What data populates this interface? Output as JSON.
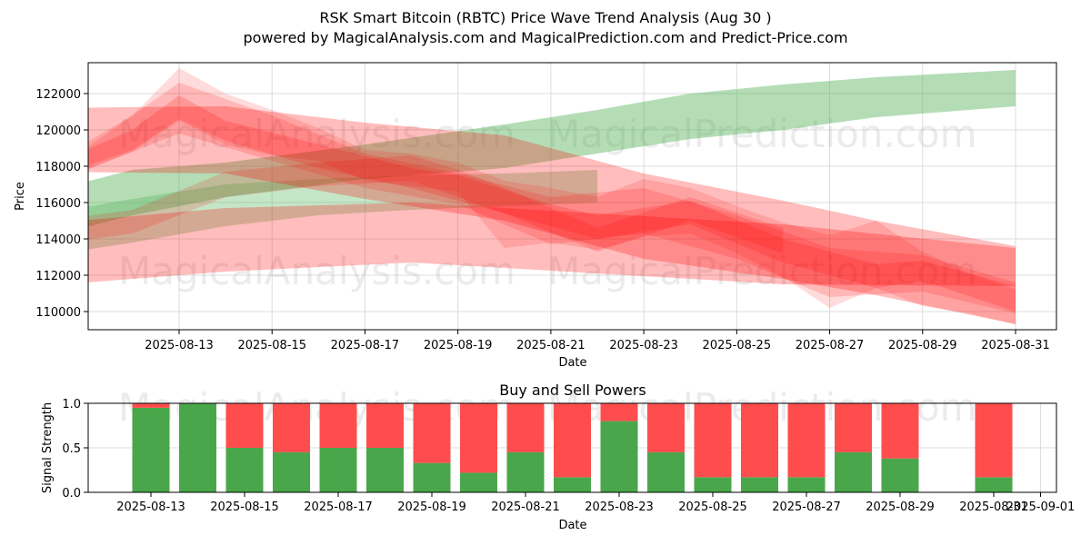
{
  "chart_data": [
    {
      "type": "area",
      "title": "RSK Smart Bitcoin (RBTC) Price Wave Trend Analysis (Aug 30 )",
      "subtitle": "powered by MagicalAnalysis.com and MagicalPrediction.com and Predict-Price.com",
      "xlabel": "Date",
      "ylabel": "Price",
      "x_ticks": [
        "2025-08-13",
        "2025-08-15",
        "2025-08-17",
        "2025-08-19",
        "2025-08-21",
        "2025-08-23",
        "2025-08-25",
        "2025-08-27",
        "2025-08-29",
        "2025-08-31"
      ],
      "y_ticks": [
        110000,
        112000,
        114000,
        116000,
        118000,
        120000,
        122000
      ],
      "xlim": [
        "2025-08-10",
        "2025-08-31"
      ],
      "ylim": [
        109000,
        123700
      ],
      "grid": true,
      "watermarks": [
        "MagicalAnalysis.com",
        "MagicalPrediction.com",
        "MagicalAnalysis.com",
        "MagicalPrediction.com"
      ],
      "colors": {
        "up": "#4caf50",
        "down": "#ff0000"
      },
      "bands": [
        {
          "color": "up",
          "opacity": 0.42,
          "points": [
            [
              "2025-08-10",
              114000,
              116500
            ],
            [
              "2025-08-12",
              115300,
              117800
            ],
            [
              "2025-08-14",
              116300,
              118200
            ],
            [
              "2025-08-17",
              117300,
              119200
            ],
            [
              "2025-08-20",
              117900,
              120300
            ],
            [
              "2025-08-22",
              118700,
              121100
            ],
            [
              "2025-08-24",
              119500,
              122000
            ],
            [
              "2025-08-26",
              120000,
              122500
            ],
            [
              "2025-08-28",
              120700,
              122900
            ],
            [
              "2025-08-31",
              121300,
              123300
            ]
          ]
        },
        {
          "color": "up",
          "opacity": 0.32,
          "points": [
            [
              "2025-08-10",
              113000,
              115300
            ],
            [
              "2025-08-12",
              113800,
              116200
            ],
            [
              "2025-08-14",
              114700,
              117000
            ],
            [
              "2025-08-16",
              115300,
              117300
            ],
            [
              "2025-08-18",
              115600,
              117500
            ],
            [
              "2025-08-20",
              115800,
              117600
            ],
            [
              "2025-08-22",
              116000,
              117800
            ]
          ]
        },
        {
          "color": "down",
          "opacity": 0.26,
          "points": [
            [
              "2025-08-10",
              117700,
              121200
            ],
            [
              "2025-08-14",
              117600,
              121300
            ],
            [
              "2025-08-17",
              116200,
              120400
            ],
            [
              "2025-08-20",
              115000,
              119700
            ],
            [
              "2025-08-23",
              112900,
              117600
            ],
            [
              "2025-08-26",
              111800,
              116100
            ],
            [
              "2025-08-28",
              110900,
              115000
            ],
            [
              "2025-08-31",
              109300,
              113600
            ]
          ]
        },
        {
          "color": "down",
          "opacity": 0.26,
          "points": [
            [
              "2025-08-10",
              111400,
              114800
            ],
            [
              "2025-08-14",
              112200,
              115700
            ],
            [
              "2025-08-18",
              112700,
              116000
            ],
            [
              "2025-08-22",
              112100,
              115400
            ],
            [
              "2025-08-26",
              111500,
              114800
            ],
            [
              "2025-08-31",
              111400,
              113500
            ]
          ]
        },
        {
          "color": "down",
          "opacity": 0.14,
          "points": [
            [
              "2025-08-11",
              117800,
              119300
            ],
            [
              "2025-08-12",
              118800,
              120800
            ],
            [
              "2025-08-13",
              120500,
              123400
            ],
            [
              "2025-08-14",
              119200,
              122000
            ],
            [
              "2025-08-15",
              118600,
              121100
            ],
            [
              "2025-08-16",
              118300,
              120100
            ],
            [
              "2025-08-17",
              117200,
              118900
            ],
            [
              "2025-08-18",
              116900,
              118700
            ],
            [
              "2025-08-19",
              116600,
              118200
            ],
            [
              "2025-08-20",
              113500,
              117200
            ],
            [
              "2025-08-21",
              113800,
              116800
            ],
            [
              "2025-08-22",
              113400,
              116300
            ],
            [
              "2025-08-23",
              114100,
              117300
            ],
            [
              "2025-08-24",
              114300,
              116800
            ],
            [
              "2025-08-25",
              113200,
              115800
            ],
            [
              "2025-08-26",
              111900,
              114900
            ],
            [
              "2025-08-27",
              110200,
              114200
            ],
            [
              "2025-08-28",
              111300,
              115000
            ],
            [
              "2025-08-29",
              110300,
              113300
            ],
            [
              "2025-08-30",
              109900,
              112100
            ],
            [
              "2025-08-31",
              109300,
              111200
            ]
          ]
        },
        {
          "color": "down",
          "opacity": 0.16,
          "points": [
            [
              "2025-08-11",
              117800,
              119000
            ],
            [
              "2025-08-13",
              119800,
              122600
            ],
            [
              "2025-08-15",
              118300,
              120800
            ],
            [
              "2025-08-17",
              116800,
              118700
            ],
            [
              "2025-08-19",
              115900,
              117600
            ],
            [
              "2025-08-21",
              113700,
              116300
            ],
            [
              "2025-08-23",
              114300,
              116800
            ],
            [
              "2025-08-25",
              112900,
              115300
            ],
            [
              "2025-08-27",
              110800,
              113500
            ],
            [
              "2025-08-29",
              111100,
              113100
            ],
            [
              "2025-08-31",
              109900,
              111600
            ]
          ]
        },
        {
          "color": "down",
          "opacity": 0.18,
          "points": [
            [
              "2025-08-11",
              118000,
              118900
            ],
            [
              "2025-08-12",
              118900,
              120000
            ],
            [
              "2025-08-13",
              120600,
              121900
            ],
            [
              "2025-08-14",
              119400,
              120500
            ],
            [
              "2025-08-16",
              117900,
              119200
            ],
            [
              "2025-08-18",
              116800,
              117900
            ],
            [
              "2025-08-19",
              116100,
              117500
            ],
            [
              "2025-08-21",
              114700,
              115900
            ],
            [
              "2025-08-22",
              114000,
              115300
            ],
            [
              "2025-08-24",
              114800,
              116100
            ],
            [
              "2025-08-26",
              112700,
              114000
            ],
            [
              "2025-08-28",
              111300,
              112600
            ],
            [
              "2025-08-29",
              111700,
              112800
            ],
            [
              "2025-08-31",
              110000,
              111400
            ]
          ]
        },
        {
          "color": "down",
          "opacity": 0.16,
          "points": [
            [
              "2025-08-10",
              113600,
              114900
            ],
            [
              "2025-08-12",
              114300,
              115600
            ],
            [
              "2025-08-14",
              116300,
              117700
            ],
            [
              "2025-08-16",
              116900,
              118200
            ],
            [
              "2025-08-18",
              117200,
              118600
            ],
            [
              "2025-08-19",
              116300,
              117800
            ],
            [
              "2025-08-20",
              115400,
              116800
            ],
            [
              "2025-08-22",
              113300,
              114600
            ],
            [
              "2025-08-24",
              115000,
              116300
            ],
            [
              "2025-08-26",
              113200,
              114600
            ]
          ]
        }
      ]
    },
    {
      "type": "bar",
      "title": "Buy and Sell Powers",
      "xlabel": "Date",
      "ylabel": "Signal Strength",
      "x_ticks": [
        "2025-08-13",
        "2025-08-15",
        "2025-08-17",
        "2025-08-19",
        "2025-08-21",
        "2025-08-23",
        "2025-08-25",
        "2025-08-27",
        "2025-08-29",
        "2025-08-31",
        "2025-09-01"
      ],
      "y_ticks": [
        "0.0",
        "0.5",
        "1.0"
      ],
      "ylim": [
        0,
        1
      ],
      "xlim": [
        "2025-08-11",
        "2025-09-01"
      ],
      "grid": true,
      "watermarks": [
        "MagicalAnalysis.com",
        "MagicalPrediction.com"
      ],
      "categories": [
        "2025-08-13",
        "2025-08-14",
        "2025-08-15",
        "2025-08-16",
        "2025-08-17",
        "2025-08-18",
        "2025-08-19",
        "2025-08-20",
        "2025-08-21",
        "2025-08-22",
        "2025-08-23",
        "2025-08-24",
        "2025-08-25",
        "2025-08-26",
        "2025-08-27",
        "2025-08-28",
        "2025-08-29",
        "2025-08-31"
      ],
      "series": [
        {
          "values": [
            0.95,
            1.0,
            0.5,
            0.45,
            0.5,
            0.5,
            0.33,
            0.22,
            0.45,
            0.17,
            0.8,
            0.45,
            0.17,
            0.17,
            0.17,
            0.45,
            0.38,
            0.17
          ],
          "color": "#4aa64a"
        },
        {
          "values": [
            0.05,
            0.0,
            0.5,
            0.55,
            0.5,
            0.5,
            0.67,
            0.78,
            0.55,
            0.83,
            0.2,
            0.55,
            0.83,
            0.83,
            0.83,
            0.55,
            0.62,
            0.83
          ],
          "color": "#ff4d4d"
        }
      ]
    }
  ]
}
